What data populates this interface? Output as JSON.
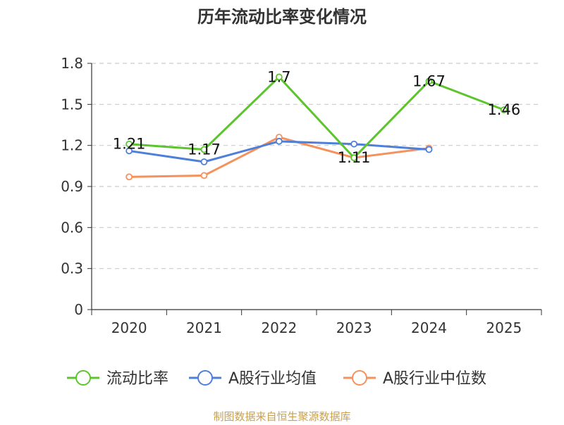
{
  "chart_data": {
    "type": "line",
    "title": "历年流动比率变化情况",
    "categories": [
      "2020",
      "2021",
      "2022",
      "2023",
      "2024",
      "2025"
    ],
    "ylim": [
      0,
      1.8
    ],
    "yticks": [
      "0",
      "0.3",
      "0.6",
      "0.9",
      "1.2",
      "1.5",
      "1.8"
    ],
    "ytick_values": [
      0,
      0.3,
      0.6,
      0.9,
      1.2,
      1.5,
      1.8
    ],
    "grid": true,
    "legend_position": "bottom",
    "series": [
      {
        "name": "流动比率",
        "color": "#5cc42c",
        "values": [
          1.21,
          1.17,
          1.7,
          1.11,
          1.67,
          1.46
        ],
        "labels": [
          "1.21",
          "1.17",
          "1.7",
          "1.11",
          "1.67",
          "1.46"
        ]
      },
      {
        "name": "A股行业均值",
        "color": "#4f7fd9",
        "values": [
          1.16,
          1.08,
          1.23,
          1.21,
          1.17,
          null
        ]
      },
      {
        "name": "A股行业中位数",
        "color": "#f5915c",
        "values": [
          0.97,
          0.98,
          1.26,
          1.11,
          1.18,
          null
        ]
      }
    ]
  },
  "footer": "制图数据来自恒生聚源数据库"
}
